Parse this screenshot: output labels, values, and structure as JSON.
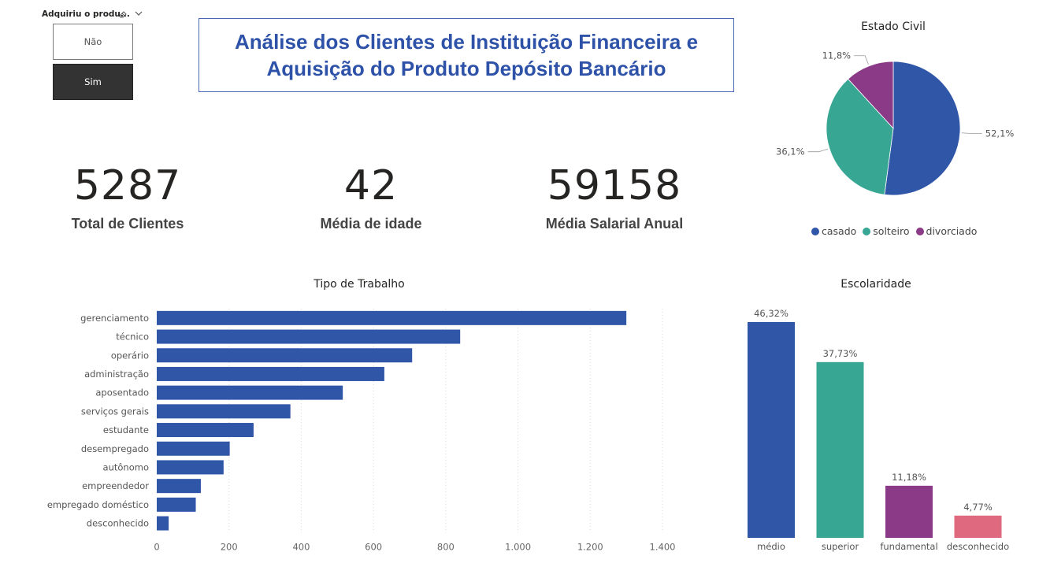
{
  "slicer": {
    "title": "Adquiriu o produ...",
    "eraser_icon": "eraser-icon",
    "chevron_icon": "chevron-down-icon",
    "options": [
      {
        "label": "Não",
        "selected": false
      },
      {
        "label": "Sim",
        "selected": true
      }
    ]
  },
  "header": {
    "title_line1": "Análise dos Clientes de Instituição Financeira e",
    "title_line2": "Aquisição do Produto Depósito Bancário"
  },
  "kpis": [
    {
      "value": "5287",
      "label": "Total de Clientes"
    },
    {
      "value": "42",
      "label": "Média de idade"
    },
    {
      "value": "59158",
      "label": "Média Salarial Anual"
    }
  ],
  "colors": {
    "blue": "#3056a8",
    "teal": "#37a794",
    "purple": "#8a3a87",
    "pink": "#df6a80",
    "title_blue": "#2d52a8"
  },
  "chart_data": [
    {
      "type": "pie",
      "title": "Estado Civil",
      "slices": [
        {
          "label": "casado",
          "value": 52.1,
          "display": "52,1%",
          "color": "#3056a8"
        },
        {
          "label": "solteiro",
          "value": 36.1,
          "display": "36,1%",
          "color": "#37a794"
        },
        {
          "label": "divorciado",
          "value": 11.8,
          "display": "11,8%",
          "color": "#8a3a87"
        }
      ],
      "legend": "bottom"
    },
    {
      "type": "bar",
      "orientation": "horizontal",
      "title": "Tipo de Trabalho",
      "categories": [
        "gerenciamento",
        "técnico",
        "operário",
        "administração",
        "aposentado",
        "serviços gerais",
        "estudante",
        "desempregado",
        "autônomo",
        "empreendedor",
        "empregado doméstico",
        "desconhecido"
      ],
      "values": [
        1300,
        840,
        707,
        630,
        515,
        370,
        268,
        202,
        185,
        122,
        108,
        33
      ],
      "xlim": [
        0,
        1400
      ],
      "ticks": [
        0,
        200,
        400,
        600,
        800,
        1000,
        1200,
        1400
      ],
      "tick_labels": [
        "0",
        "200",
        "400",
        "600",
        "800",
        "1.000",
        "1.200",
        "1.400"
      ],
      "grid": true,
      "color": "#3056a8"
    },
    {
      "type": "bar",
      "title": "Escolaridade",
      "categories": [
        "médio",
        "superior",
        "fundamental",
        "desconhecido"
      ],
      "values": [
        46.32,
        37.73,
        11.18,
        4.77
      ],
      "labels": [
        "46,32%",
        "37,73%",
        "11,18%",
        "4,77%"
      ],
      "colors": [
        "#3056a8",
        "#37a794",
        "#8a3a87",
        "#df6a80"
      ],
      "ylim": [
        0,
        46.32
      ]
    }
  ]
}
